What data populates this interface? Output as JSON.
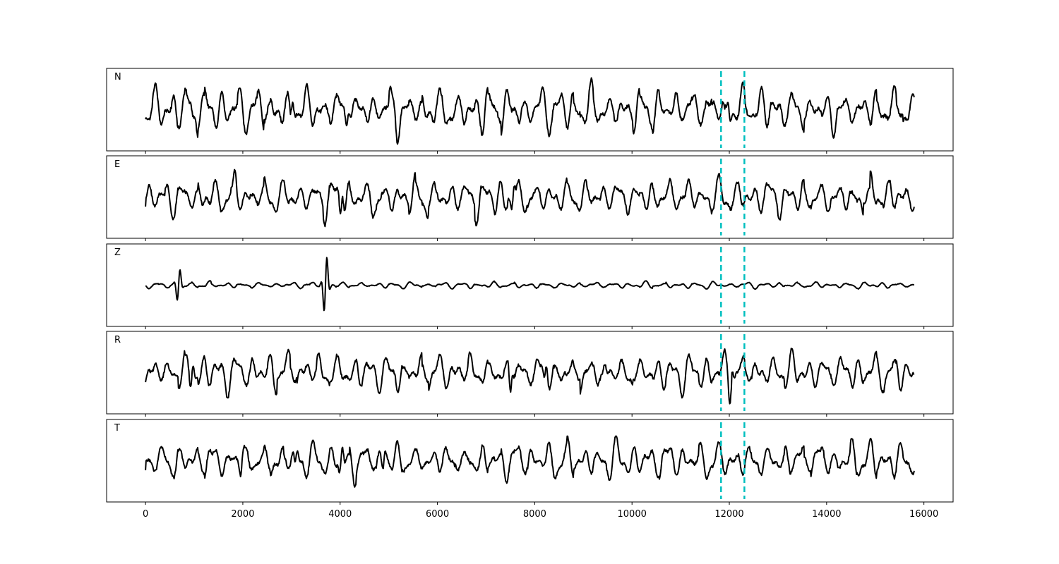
{
  "chart_data": {
    "type": "line",
    "layout": "stacked-subplots",
    "shared_x": true,
    "x_start": 0,
    "x_end": 15800,
    "xlim": [
      -800,
      16600
    ],
    "xticks": [
      0,
      2000,
      4000,
      6000,
      8000,
      10000,
      12000,
      14000,
      16000
    ],
    "xtick_labels": [
      "0",
      "2000",
      "4000",
      "6000",
      "8000",
      "10000",
      "12000",
      "14000",
      "16000"
    ],
    "series_color": "#000000",
    "marker_color": "#00bfbf",
    "markers": [
      11830,
      12310
    ],
    "ylim": [
      -1,
      1
    ],
    "grid": false,
    "panels": [
      {
        "label": "N",
        "amplitude": 0.72,
        "peaks": [
          {
            "x": 1000,
            "a": 0.25
          },
          {
            "x": 3000,
            "a": 0.3
          },
          {
            "x": 4150,
            "a": 0.32
          },
          {
            "x": 5100,
            "a": 0.25
          },
          {
            "x": 11950,
            "a": 0.35
          }
        ]
      },
      {
        "label": "E",
        "amplitude": 0.62,
        "peaks": [
          {
            "x": 1820,
            "a": 0.2
          },
          {
            "x": 4030,
            "a": 0.5
          },
          {
            "x": 7550,
            "a": 0.35
          }
        ]
      },
      {
        "label": "Z",
        "amplitude": 0.1,
        "peaks": [
          {
            "x": 680,
            "a": 0.5
          },
          {
            "x": 3700,
            "a": 0.9
          }
        ]
      },
      {
        "label": "R",
        "amplitude": 0.58,
        "peaks": [
          {
            "x": 950,
            "a": 0.35
          },
          {
            "x": 7520,
            "a": 0.45
          },
          {
            "x": 8220,
            "a": 0.3
          },
          {
            "x": 9420,
            "a": 0.2
          },
          {
            "x": 12030,
            "a": 0.4
          }
        ]
      },
      {
        "label": "T",
        "amplitude": 0.6,
        "peaks": [
          {
            "x": 1980,
            "a": 0.25
          },
          {
            "x": 3100,
            "a": 0.3
          },
          {
            "x": 4020,
            "a": 0.4
          },
          {
            "x": 4900,
            "a": 0.3
          }
        ]
      }
    ]
  }
}
